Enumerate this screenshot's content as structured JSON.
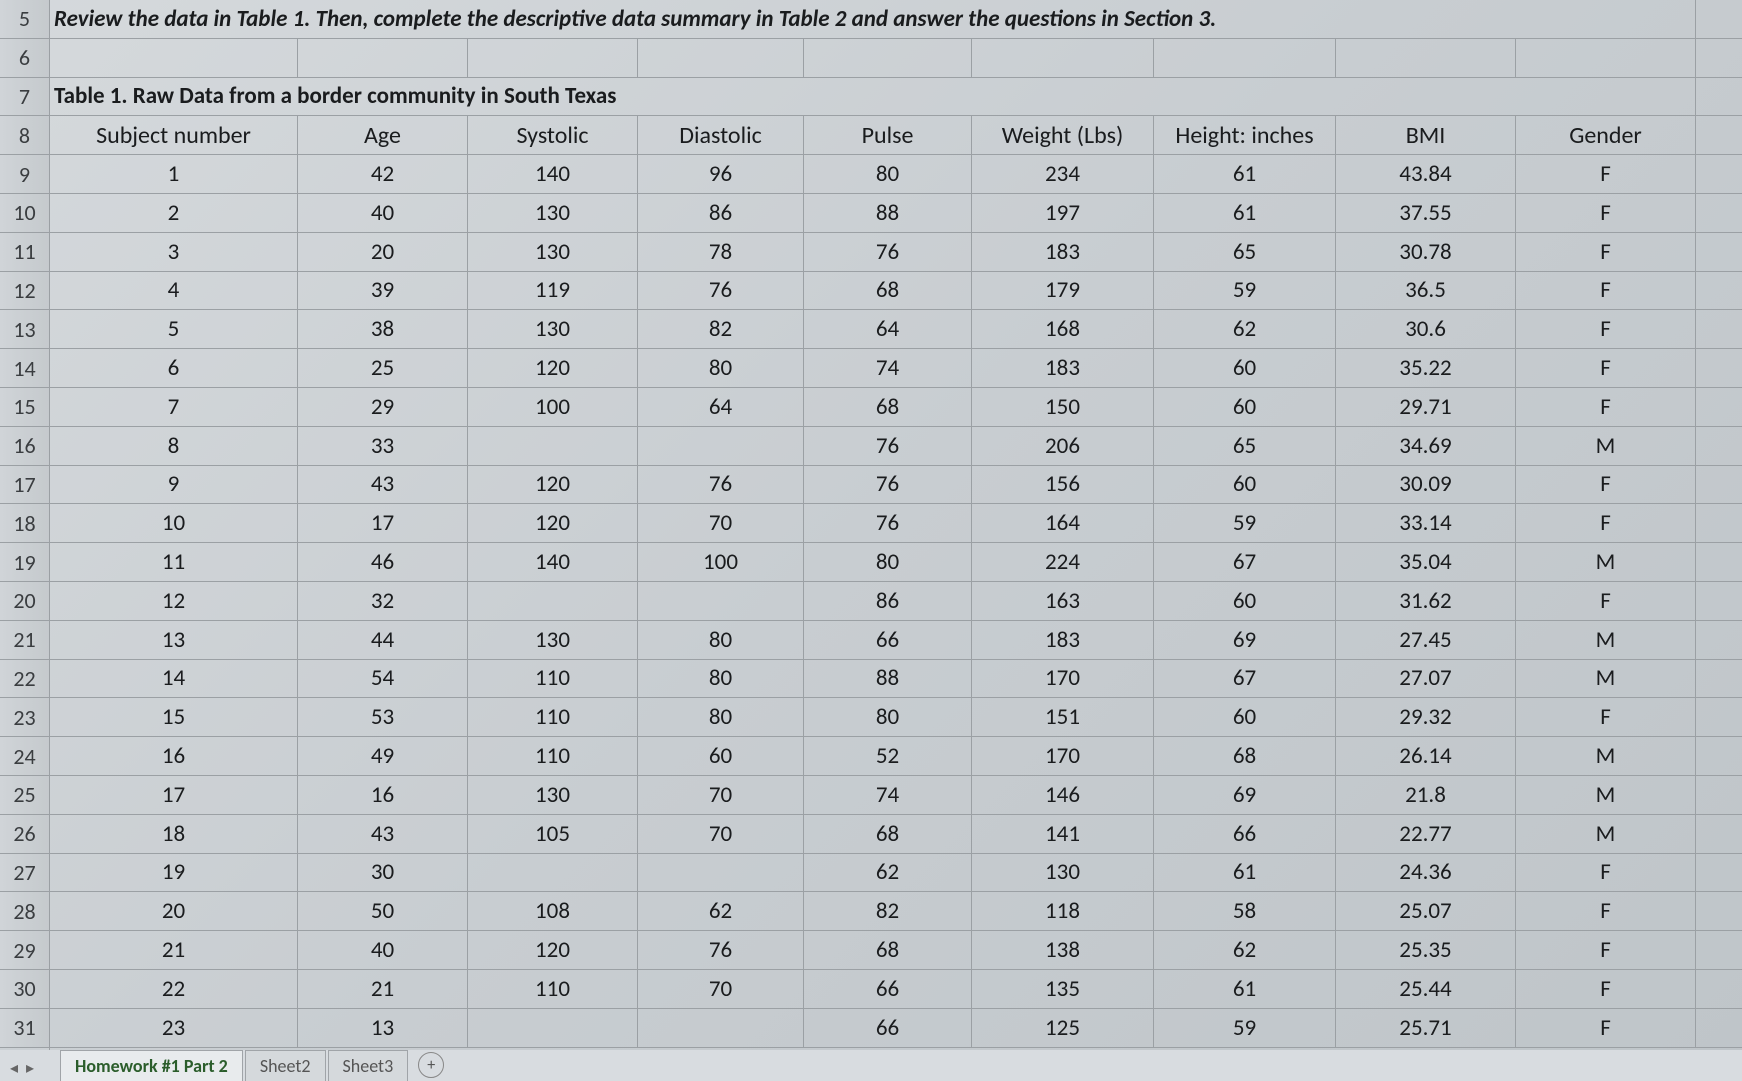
{
  "row_numbers": [
    "5",
    "6",
    "7",
    "8",
    "9",
    "10",
    "11",
    "12",
    "13",
    "14",
    "15",
    "16",
    "17",
    "18",
    "19",
    "20",
    "21",
    "22",
    "23",
    "24",
    "25",
    "26",
    "27",
    "28",
    "29",
    "30",
    "31"
  ],
  "instruction": "Review the data in Table 1. Then, complete the descriptive data summary in Table 2 and answer the questions in Section 3.",
  "table_title": "Table 1.  Raw Data from a border community in South Texas",
  "columns": [
    "Subject number",
    "Age",
    "Systolic",
    "Diastolic",
    "Pulse",
    "Weight (Lbs)",
    "Height: inches",
    "BMI",
    "Gender"
  ],
  "data_rows": [
    [
      "1",
      "42",
      "140",
      "96",
      "80",
      "234",
      "61",
      "43.84",
      "F"
    ],
    [
      "2",
      "40",
      "130",
      "86",
      "88",
      "197",
      "61",
      "37.55",
      "F"
    ],
    [
      "3",
      "20",
      "130",
      "78",
      "76",
      "183",
      "65",
      "30.78",
      "F"
    ],
    [
      "4",
      "39",
      "119",
      "76",
      "68",
      "179",
      "59",
      "36.5",
      "F"
    ],
    [
      "5",
      "38",
      "130",
      "82",
      "64",
      "168",
      "62",
      "30.6",
      "F"
    ],
    [
      "6",
      "25",
      "120",
      "80",
      "74",
      "183",
      "60",
      "35.22",
      "F"
    ],
    [
      "7",
      "29",
      "100",
      "64",
      "68",
      "150",
      "60",
      "29.71",
      "F"
    ],
    [
      "8",
      "33",
      "",
      "",
      "76",
      "206",
      "65",
      "34.69",
      "M"
    ],
    [
      "9",
      "43",
      "120",
      "76",
      "76",
      "156",
      "60",
      "30.09",
      "F"
    ],
    [
      "10",
      "17",
      "120",
      "70",
      "76",
      "164",
      "59",
      "33.14",
      "F"
    ],
    [
      "11",
      "46",
      "140",
      "100",
      "80",
      "224",
      "67",
      "35.04",
      "M"
    ],
    [
      "12",
      "32",
      "",
      "",
      "86",
      "163",
      "60",
      "31.62",
      "F"
    ],
    [
      "13",
      "44",
      "130",
      "80",
      "66",
      "183",
      "69",
      "27.45",
      "M"
    ],
    [
      "14",
      "54",
      "110",
      "80",
      "88",
      "170",
      "67",
      "27.07",
      "M"
    ],
    [
      "15",
      "53",
      "110",
      "80",
      "80",
      "151",
      "60",
      "29.32",
      "F"
    ],
    [
      "16",
      "49",
      "110",
      "60",
      "52",
      "170",
      "68",
      "26.14",
      "M"
    ],
    [
      "17",
      "16",
      "130",
      "70",
      "74",
      "146",
      "69",
      "21.8",
      "M"
    ],
    [
      "18",
      "43",
      "105",
      "70",
      "68",
      "141",
      "66",
      "22.77",
      "M"
    ],
    [
      "19",
      "30",
      "",
      "",
      "62",
      "130",
      "61",
      "24.36",
      "F"
    ],
    [
      "20",
      "50",
      "108",
      "62",
      "82",
      "118",
      "58",
      "25.07",
      "F"
    ],
    [
      "21",
      "40",
      "120",
      "76",
      "68",
      "138",
      "62",
      "25.35",
      "F"
    ],
    [
      "22",
      "21",
      "110",
      "70",
      "66",
      "135",
      "61",
      "25.44",
      "F"
    ],
    [
      "23",
      "13",
      "",
      "",
      "66",
      "125",
      "59",
      "25.71",
      "F"
    ]
  ],
  "tabs": {
    "active": "Homework #1 Part 2",
    "others": [
      "Sheet2",
      "Sheet3"
    ]
  },
  "colors": {
    "grid_line": "#9ba0a4",
    "header_bg": "#d0d4d8",
    "cell_bg_gradient_start": "#d5d9dc",
    "cell_bg_gradient_end": "#bfc5c9",
    "text": "#1a1c1e",
    "row_header_text": "#3a3d40"
  },
  "typography": {
    "cell_fontsize": 23,
    "row_header_fontsize": 22,
    "header_fontsize": 24
  }
}
